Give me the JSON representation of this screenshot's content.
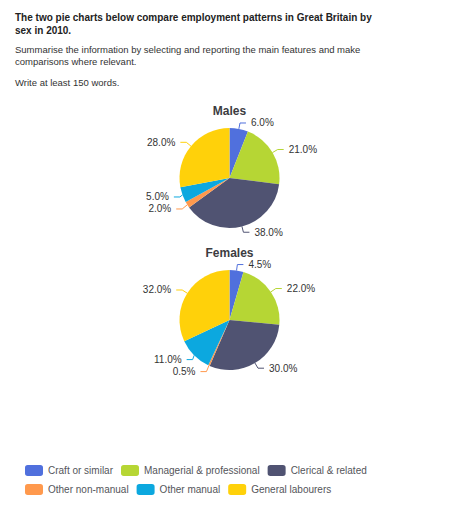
{
  "title": "The two pie charts below compare employment patterns in Great Britain by\nsex in 2010.",
  "subtitle": "Summarise the information by selecting and reporting the main features and make\ncomparisons where relevant.",
  "annotations": [
    "Write at least 150 words."
  ],
  "chart_data": [
    {
      "type": "pie",
      "title": "Males",
      "categories": [
        "Craft or similar",
        "Managerial & professional",
        "Clerical & related",
        "Other non-manual",
        "Other manual",
        "General labourers"
      ],
      "values": [
        6.0,
        21.0,
        38.0,
        2.0,
        5.0,
        28.0
      ],
      "value_labels": [
        "6.0%",
        "21.0%",
        "38.0%",
        "2.0%",
        "5.0%",
        "28.0%"
      ],
      "data_labels": true,
      "legend": "bottom"
    },
    {
      "type": "pie",
      "title": "Females",
      "categories": [
        "Craft or similar",
        "Managerial & professional",
        "Clerical & related",
        "Other non-manual",
        "Other manual",
        "General labourers"
      ],
      "values": [
        4.5,
        22.0,
        30.0,
        0.5,
        11.0,
        32.0
      ],
      "value_labels": [
        "4.5%",
        "22.0%",
        "30.0%",
        "0.5%",
        "11.0%",
        "32.0%"
      ],
      "data_labels": true,
      "legend": "bottom"
    }
  ]
}
